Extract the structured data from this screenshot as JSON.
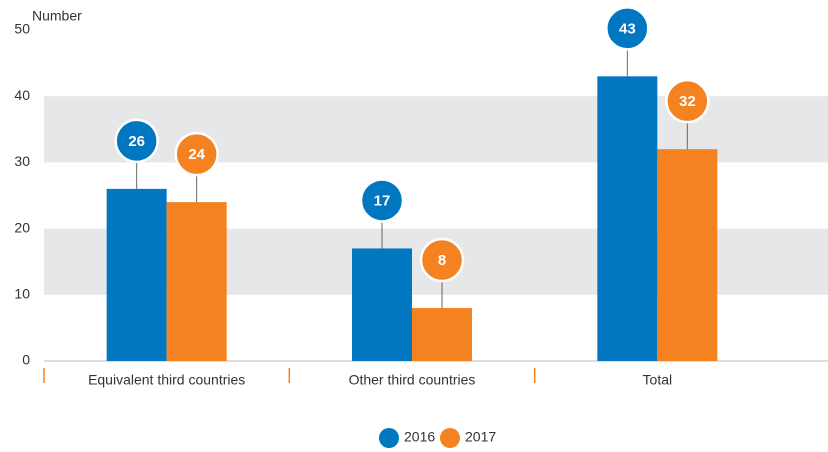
{
  "chart_data": {
    "type": "bar",
    "y_label": "Number",
    "categories": [
      "Equivalent third countries",
      "Other third countries",
      "Total"
    ],
    "series": [
      {
        "name": "2016",
        "color": "#0077c0",
        "values": [
          26,
          17,
          43
        ]
      },
      {
        "name": "2017",
        "color": "#f58220",
        "values": [
          24,
          8,
          32
        ]
      }
    ],
    "ylim": [
      0,
      50
    ],
    "yticks": [
      0,
      10,
      20,
      30,
      40,
      50
    ],
    "grid": true
  }
}
